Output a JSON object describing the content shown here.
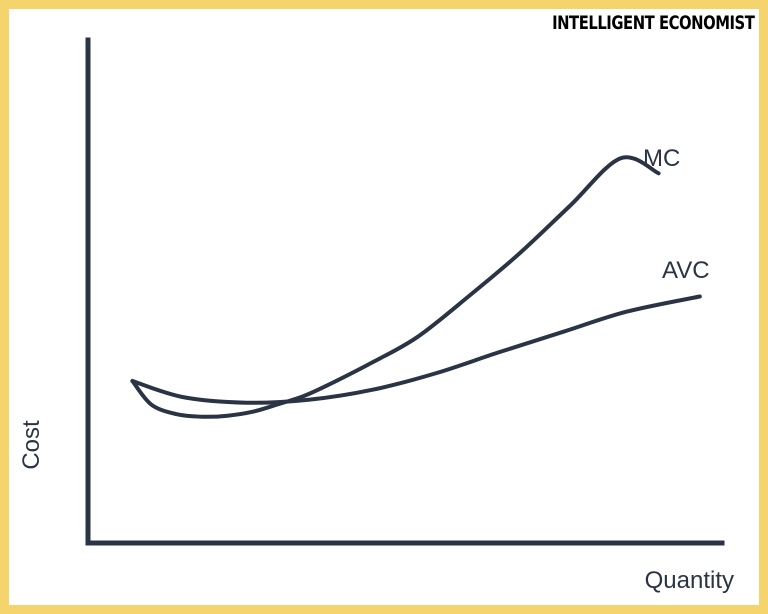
{
  "brand": {
    "text": "INTELLIGENT ECONOMIST"
  },
  "colors": {
    "frame": "#f5d46e",
    "ink": "#2b3444"
  },
  "chart_data": {
    "type": "line",
    "xlabel": "Quantity",
    "ylabel": "Cost",
    "xlim": [
      0,
      100
    ],
    "ylim": [
      0,
      100
    ],
    "axes_ticks": false,
    "grid": false,
    "legend": "none",
    "series": [
      {
        "name": "MC",
        "x": [
          7,
          10,
          14,
          18,
          22,
          26,
          30,
          34,
          38,
          45,
          52,
          60,
          68,
          76,
          84,
          90
        ],
        "y": [
          32.2,
          27.5,
          25.6,
          25.1,
          25.3,
          26.1,
          27.6,
          29.2,
          31.5,
          36.0,
          41.0,
          49.0,
          57.5,
          67.0,
          76.5,
          73.5
        ]
      },
      {
        "name": "AVC",
        "x": [
          7,
          15,
          25,
          35,
          45,
          55,
          65,
          75,
          85,
          96.5
        ],
        "y": [
          32.2,
          29.0,
          27.9,
          28.5,
          30.5,
          33.8,
          38.0,
          42.0,
          46.0,
          49.0
        ]
      }
    ]
  }
}
